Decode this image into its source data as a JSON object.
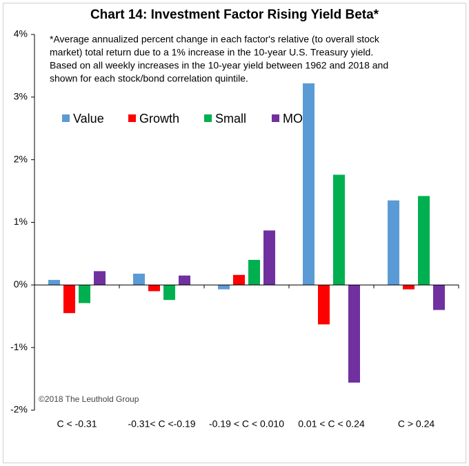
{
  "chart_data": {
    "type": "bar",
    "title": "Chart 14: Investment Factor Rising Yield Beta*",
    "note": [
      "*Average annualized percent change in each factor's relative (to overall stock",
      "market) total return due to a 1% increase in the 10-year U.S. Treasury yield.",
      "Based on all weekly increases in the 10-year yield between 1962 and 2018 and",
      "shown for each stock/bond correlation quintile."
    ],
    "source": "©2018 The Leuthold Group",
    "categories": [
      "C < -0.31",
      "-0.31< C <-0.19",
      "-0.19 < C < 0.010",
      "0.01 < C < 0.24",
      "C > 0.24"
    ],
    "series": [
      {
        "name": "Value",
        "color": "#5b9bd5",
        "values": [
          0.08,
          0.18,
          -0.07,
          3.22,
          1.35
        ]
      },
      {
        "name": "Growth",
        "color": "#ff0000",
        "values": [
          -0.45,
          -0.1,
          0.16,
          -0.63,
          -0.07
        ]
      },
      {
        "name": "Small",
        "color": "#00b050",
        "values": [
          -0.29,
          -0.24,
          0.4,
          1.76,
          1.42
        ]
      },
      {
        "name": "MO",
        "color": "#7030a0",
        "values": [
          0.22,
          0.15,
          0.87,
          -1.56,
          -0.4
        ]
      }
    ],
    "ylim": [
      -2,
      4
    ],
    "yticks": [
      {
        "value": -2,
        "label": "-2%"
      },
      {
        "value": -1,
        "label": "-1%"
      },
      {
        "value": 0,
        "label": "0%"
      },
      {
        "value": 1,
        "label": "1%"
      },
      {
        "value": 2,
        "label": "2%"
      },
      {
        "value": 3,
        "label": "3%"
      },
      {
        "value": 4,
        "label": "4%"
      }
    ],
    "grid": false,
    "legend": "top-left"
  }
}
